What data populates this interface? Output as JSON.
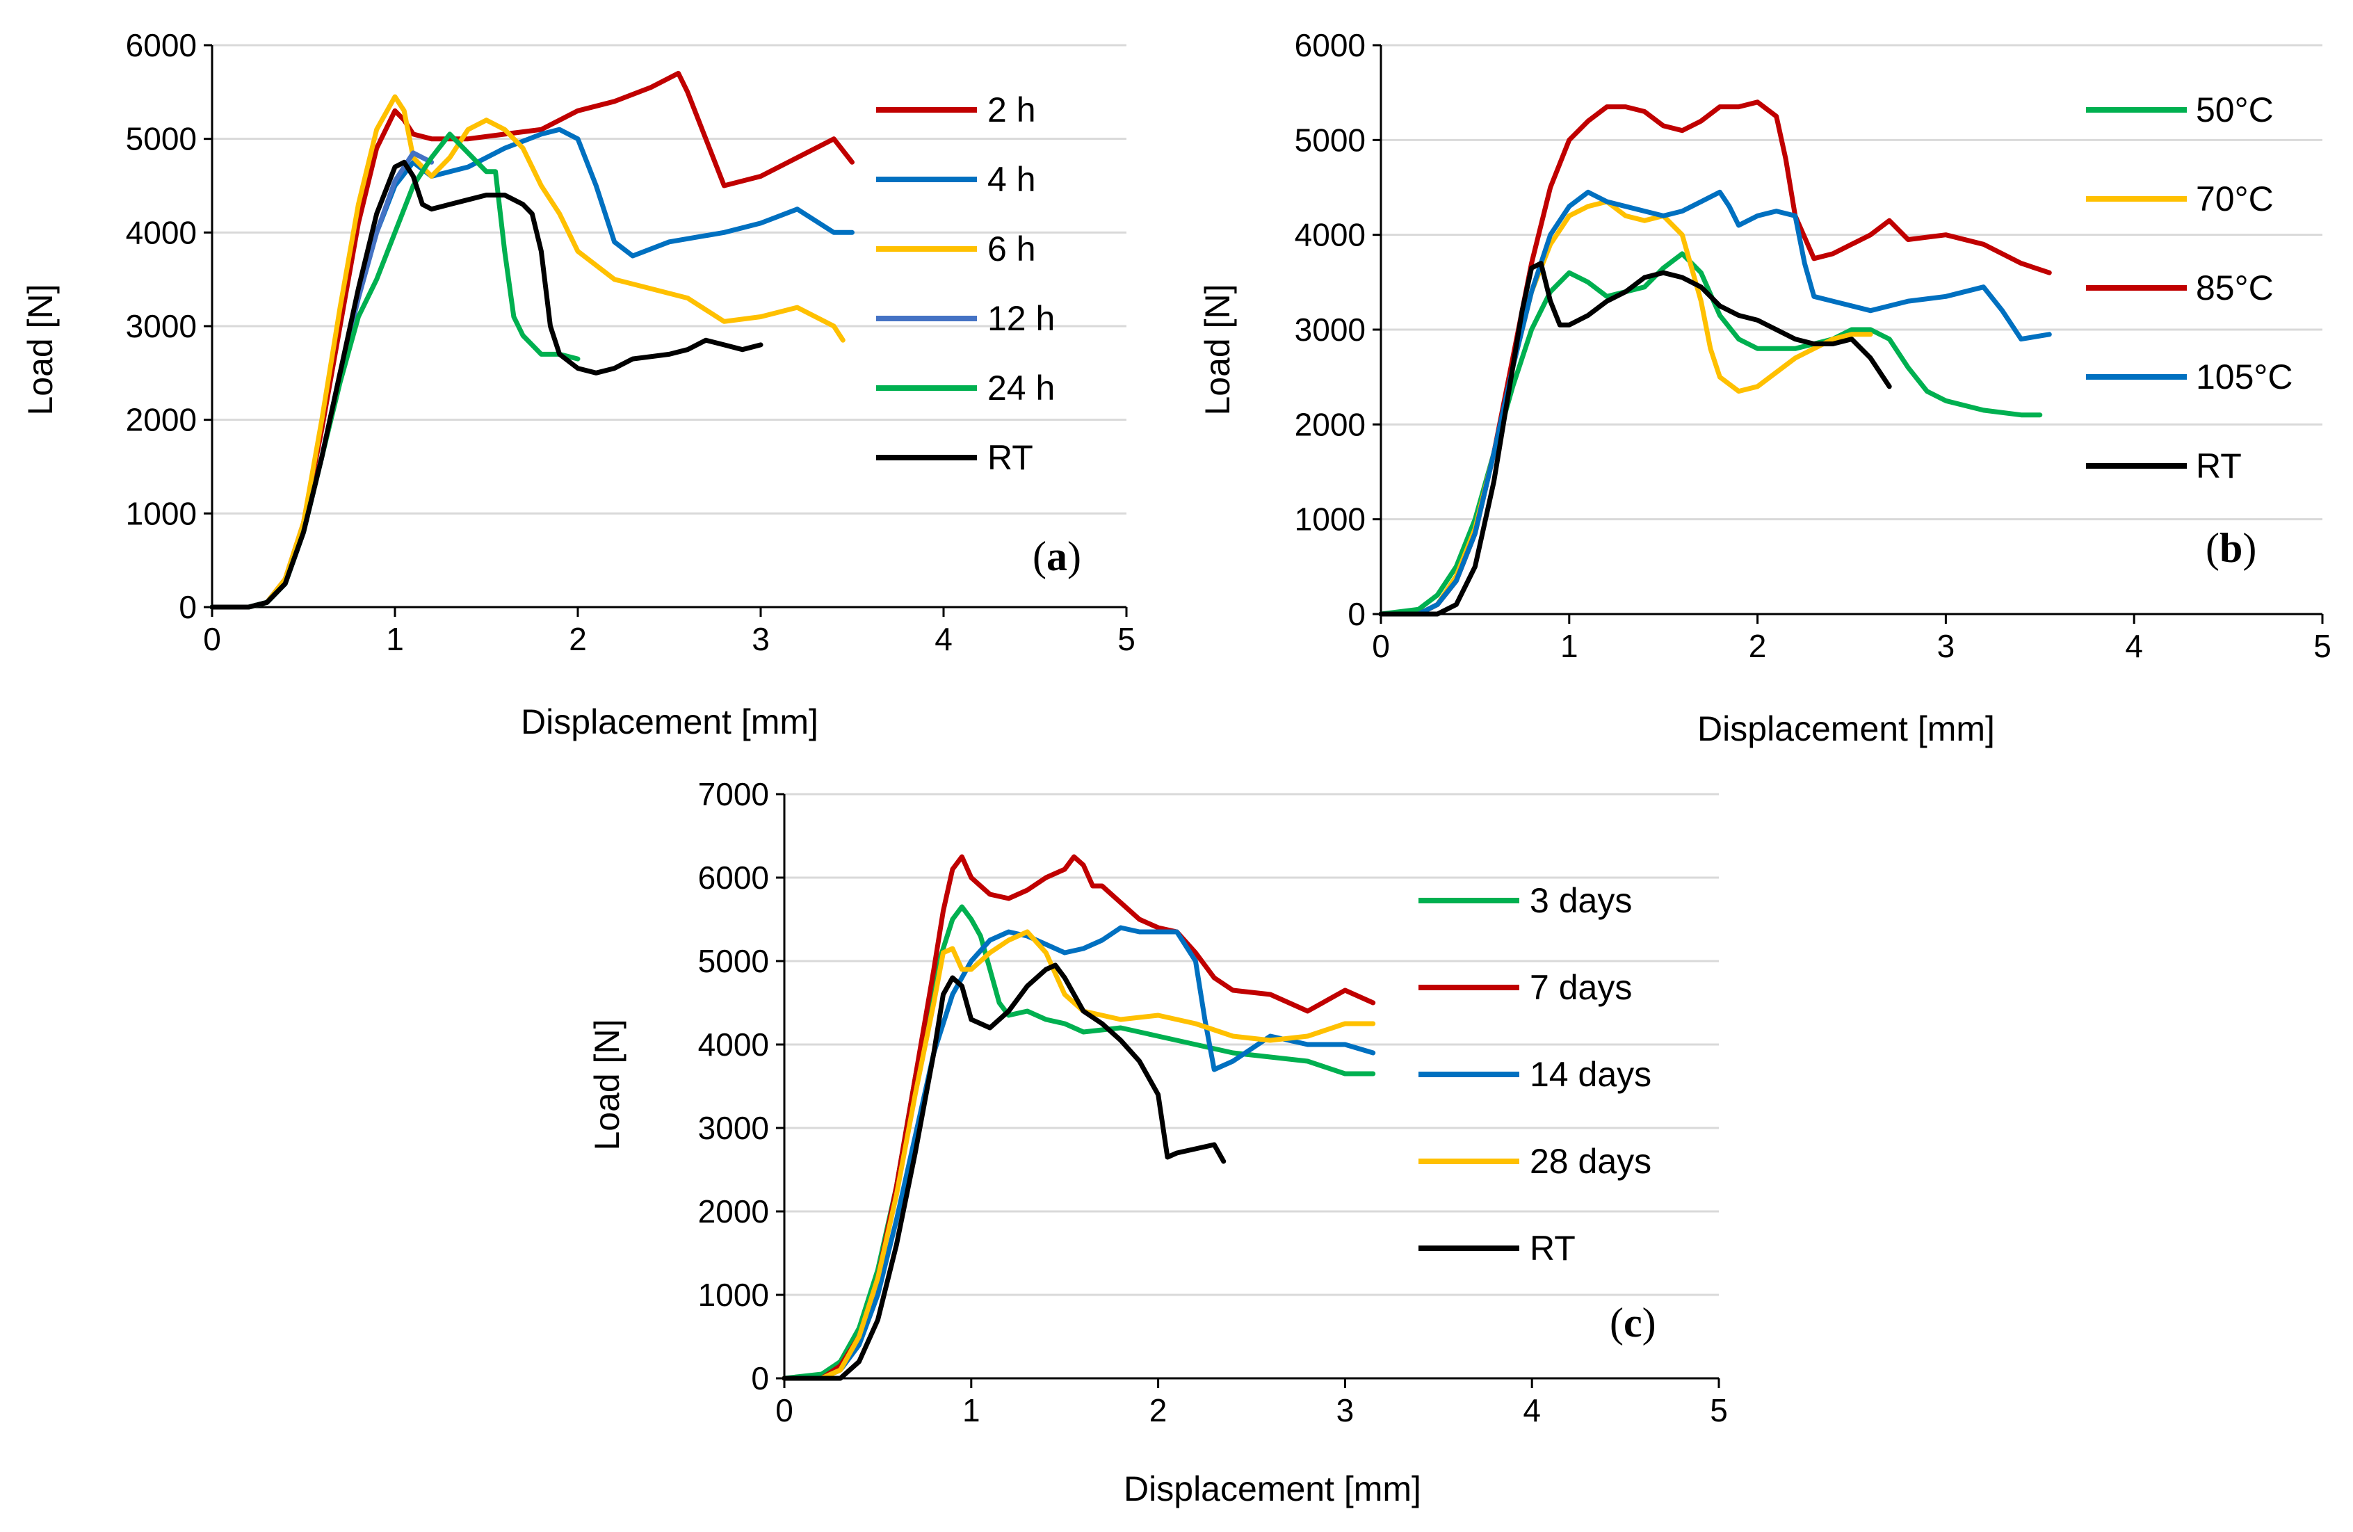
{
  "chart_data": [
    {
      "id": "a",
      "type": "line",
      "panel_label": "a",
      "xlabel": "Displacement [mm]",
      "ylabel": "Load [N]",
      "xlim": [
        0,
        5
      ],
      "ylim": [
        0,
        6000
      ],
      "xticks": [
        "0",
        "1",
        "2",
        "3",
        "4",
        "5"
      ],
      "yticks": [
        "0",
        "1000",
        "2000",
        "3000",
        "4000",
        "5000",
        "6000"
      ],
      "legend_position": "right",
      "series": [
        {
          "name": "2 h",
          "color": "#c00000",
          "x": [
            0,
            0.2,
            0.3,
            0.4,
            0.5,
            0.6,
            0.7,
            0.8,
            0.9,
            1.0,
            1.05,
            1.1,
            1.2,
            1.4,
            1.6,
            1.8,
            2.0,
            2.2,
            2.4,
            2.55,
            2.6,
            2.7,
            2.8,
            3.0,
            3.2,
            3.4,
            3.5
          ],
          "y": [
            0,
            0,
            50,
            300,
            900,
            1900,
            3000,
            4100,
            4900,
            5300,
            5200,
            5050,
            5000,
            5000,
            5050,
            5100,
            5300,
            5400,
            5550,
            5700,
            5500,
            5000,
            4500,
            4600,
            4800,
            5000,
            4750
          ]
        },
        {
          "name": "4 h",
          "color": "#0070c0",
          "x": [
            0,
            0.2,
            0.3,
            0.4,
            0.5,
            0.6,
            0.7,
            0.8,
            0.9,
            1.0,
            1.1,
            1.2,
            1.4,
            1.6,
            1.8,
            1.9,
            2.0,
            2.1,
            2.2,
            2.3,
            2.5,
            2.8,
            3.0,
            3.2,
            3.4,
            3.5
          ],
          "y": [
            0,
            0,
            50,
            250,
            800,
            1600,
            2500,
            3300,
            4000,
            4500,
            4750,
            4600,
            4700,
            4900,
            5050,
            5100,
            5000,
            4500,
            3900,
            3750,
            3900,
            4000,
            4100,
            4250,
            4000,
            4000
          ]
        },
        {
          "name": "6 h",
          "color": "#ffc000",
          "x": [
            0,
            0.2,
            0.3,
            0.4,
            0.5,
            0.6,
            0.7,
            0.8,
            0.9,
            1.0,
            1.05,
            1.1,
            1.2,
            1.3,
            1.4,
            1.5,
            1.6,
            1.7,
            1.8,
            1.9,
            2.0,
            2.2,
            2.4,
            2.6,
            2.8,
            3.0,
            3.2,
            3.4,
            3.45
          ],
          "y": [
            0,
            0,
            50,
            300,
            900,
            2000,
            3200,
            4300,
            5100,
            5450,
            5300,
            4800,
            4600,
            4800,
            5100,
            5200,
            5100,
            4900,
            4500,
            4200,
            3800,
            3500,
            3400,
            3300,
            3050,
            3100,
            3200,
            3000,
            2850
          ]
        },
        {
          "name": "12 h",
          "color": "#4472c4",
          "x": [
            0,
            0.2,
            0.3,
            0.4,
            0.5,
            0.6,
            0.7,
            0.8,
            0.9,
            1.0,
            1.1,
            1.15,
            1.2
          ],
          "y": [
            0,
            0,
            50,
            250,
            800,
            1600,
            2500,
            3300,
            4000,
            4550,
            4850,
            4800,
            4750
          ]
        },
        {
          "name": "24 h",
          "color": "#00b050",
          "x": [
            0,
            0.2,
            0.3,
            0.4,
            0.5,
            0.6,
            0.7,
            0.8,
            0.9,
            1.0,
            1.1,
            1.2,
            1.3,
            1.4,
            1.5,
            1.55,
            1.6,
            1.65,
            1.7,
            1.8,
            1.9,
            2.0
          ],
          "y": [
            0,
            0,
            50,
            250,
            800,
            1600,
            2400,
            3100,
            3500,
            4000,
            4500,
            4800,
            5050,
            4850,
            4650,
            4650,
            3800,
            3100,
            2900,
            2700,
            2700,
            2650
          ]
        },
        {
          "name": "RT",
          "color": "#000000",
          "x": [
            0,
            0.2,
            0.3,
            0.4,
            0.5,
            0.6,
            0.7,
            0.8,
            0.9,
            1.0,
            1.05,
            1.1,
            1.15,
            1.2,
            1.3,
            1.4,
            1.5,
            1.6,
            1.7,
            1.75,
            1.8,
            1.85,
            1.9,
            2.0,
            2.1,
            2.2,
            2.3,
            2.5,
            2.6,
            2.7,
            2.8,
            2.9,
            3.0
          ],
          "y": [
            0,
            0,
            50,
            250,
            800,
            1600,
            2500,
            3400,
            4200,
            4700,
            4750,
            4600,
            4300,
            4250,
            4300,
            4350,
            4400,
            4400,
            4300,
            4200,
            3800,
            3000,
            2700,
            2550,
            2500,
            2550,
            2650,
            2700,
            2750,
            2850,
            2800,
            2750,
            2800
          ]
        }
      ]
    },
    {
      "id": "b",
      "type": "line",
      "panel_label": "b",
      "xlabel": "Displacement [mm]",
      "ylabel": "Load [N]",
      "xlim": [
        0,
        5
      ],
      "ylim": [
        0,
        6000
      ],
      "xticks": [
        "0",
        "1",
        "2",
        "3",
        "4",
        "5"
      ],
      "yticks": [
        "0",
        "1000",
        "2000",
        "3000",
        "4000",
        "5000",
        "6000"
      ],
      "legend_position": "right",
      "series": [
        {
          "name": "50°C",
          "color": "#00b050",
          "x": [
            0,
            0.2,
            0.3,
            0.4,
            0.5,
            0.6,
            0.7,
            0.8,
            0.9,
            1.0,
            1.1,
            1.2,
            1.3,
            1.4,
            1.5,
            1.6,
            1.7,
            1.8,
            1.9,
            2.0,
            2.2,
            2.4,
            2.5,
            2.6,
            2.7,
            2.8,
            2.9,
            3.0,
            3.2,
            3.4,
            3.5
          ],
          "y": [
            0,
            50,
            200,
            500,
            1000,
            1700,
            2400,
            3000,
            3400,
            3600,
            3500,
            3350,
            3400,
            3450,
            3650,
            3800,
            3600,
            3150,
            2900,
            2800,
            2800,
            2900,
            3000,
            3000,
            2900,
            2600,
            2350,
            2250,
            2150,
            2100,
            2100
          ]
        },
        {
          "name": "70°C",
          "color": "#ffc000",
          "x": [
            0,
            0.2,
            0.3,
            0.4,
            0.5,
            0.6,
            0.7,
            0.8,
            0.9,
            1.0,
            1.1,
            1.2,
            1.3,
            1.4,
            1.5,
            1.6,
            1.7,
            1.75,
            1.8,
            1.9,
            2.0,
            2.2,
            2.4,
            2.5,
            2.6
          ],
          "y": [
            0,
            0,
            100,
            400,
            900,
            1700,
            2600,
            3400,
            3900,
            4200,
            4300,
            4350,
            4200,
            4150,
            4200,
            4000,
            3300,
            2800,
            2500,
            2350,
            2400,
            2700,
            2900,
            2950,
            2950
          ]
        },
        {
          "name": "85°C",
          "color": "#c00000",
          "x": [
            0,
            0.2,
            0.3,
            0.4,
            0.5,
            0.6,
            0.7,
            0.8,
            0.9,
            1.0,
            1.1,
            1.2,
            1.3,
            1.4,
            1.5,
            1.6,
            1.7,
            1.8,
            1.9,
            2.0,
            2.1,
            2.15,
            2.2,
            2.3,
            2.4,
            2.5,
            2.6,
            2.7,
            2.8,
            3.0,
            3.2,
            3.4,
            3.55
          ],
          "y": [
            0,
            0,
            100,
            350,
            850,
            1700,
            2700,
            3700,
            4500,
            5000,
            5200,
            5350,
            5350,
            5300,
            5150,
            5100,
            5200,
            5350,
            5350,
            5400,
            5250,
            4800,
            4200,
            3750,
            3800,
            3900,
            4000,
            4150,
            3950,
            4000,
            3900,
            3700,
            3600
          ]
        },
        {
          "name": "105°C",
          "color": "#0070c0",
          "x": [
            0,
            0.2,
            0.3,
            0.4,
            0.5,
            0.6,
            0.7,
            0.8,
            0.9,
            1.0,
            1.1,
            1.2,
            1.3,
            1.4,
            1.5,
            1.6,
            1.7,
            1.8,
            1.85,
            1.9,
            2.0,
            2.1,
            2.2,
            2.25,
            2.3,
            2.4,
            2.6,
            2.8,
            3.0,
            3.2,
            3.3,
            3.4,
            3.55
          ],
          "y": [
            0,
            0,
            100,
            350,
            850,
            1700,
            2600,
            3400,
            4000,
            4300,
            4450,
            4350,
            4300,
            4250,
            4200,
            4250,
            4350,
            4450,
            4300,
            4100,
            4200,
            4250,
            4200,
            3700,
            3350,
            3300,
            3200,
            3300,
            3350,
            3450,
            3200,
            2900,
            2950
          ]
        },
        {
          "name": "RT",
          "color": "#000000",
          "x": [
            0,
            0.2,
            0.3,
            0.4,
            0.5,
            0.6,
            0.7,
            0.75,
            0.8,
            0.85,
            0.9,
            0.95,
            1.0,
            1.1,
            1.2,
            1.3,
            1.4,
            1.5,
            1.6,
            1.7,
            1.8,
            1.9,
            2.0,
            2.1,
            2.2,
            2.3,
            2.4,
            2.5,
            2.6,
            2.7
          ],
          "y": [
            0,
            0,
            0,
            100,
            500,
            1400,
            2600,
            3200,
            3650,
            3700,
            3300,
            3050,
            3050,
            3150,
            3300,
            3400,
            3550,
            3600,
            3550,
            3450,
            3250,
            3150,
            3100,
            3000,
            2900,
            2850,
            2850,
            2900,
            2700,
            2400
          ]
        }
      ]
    },
    {
      "id": "c",
      "type": "line",
      "panel_label": "c",
      "xlabel": "Displacement [mm]",
      "ylabel": "Load [N]",
      "xlim": [
        0,
        5
      ],
      "ylim": [
        0,
        7000
      ],
      "xticks": [
        "0",
        "1",
        "2",
        "3",
        "4",
        "5"
      ],
      "yticks": [
        "0",
        "1000",
        "2000",
        "3000",
        "4000",
        "5000",
        "6000",
        "7000"
      ],
      "legend_position": "right",
      "series": [
        {
          "name": "3 days",
          "color": "#00b050",
          "x": [
            0,
            0.2,
            0.3,
            0.4,
            0.5,
            0.6,
            0.7,
            0.8,
            0.9,
            0.95,
            1.0,
            1.05,
            1.1,
            1.15,
            1.2,
            1.3,
            1.4,
            1.5,
            1.6,
            1.8,
            2.0,
            2.2,
            2.4,
            2.6,
            2.8,
            3.0,
            3.15
          ],
          "y": [
            0,
            50,
            200,
            600,
            1300,
            2300,
            3600,
            4800,
            5500,
            5650,
            5500,
            5300,
            4900,
            4500,
            4350,
            4400,
            4300,
            4250,
            4150,
            4200,
            4100,
            4000,
            3900,
            3850,
            3800,
            3650,
            3650
          ]
        },
        {
          "name": "7 days",
          "color": "#c00000",
          "x": [
            0,
            0.2,
            0.3,
            0.4,
            0.5,
            0.6,
            0.7,
            0.8,
            0.85,
            0.9,
            0.95,
            1.0,
            1.05,
            1.1,
            1.2,
            1.3,
            1.4,
            1.5,
            1.55,
            1.6,
            1.65,
            1.7,
            1.8,
            1.9,
            2.0,
            2.1,
            2.2,
            2.3,
            2.4,
            2.6,
            2.8,
            3.0,
            3.15
          ],
          "y": [
            0,
            0,
            150,
            500,
            1200,
            2300,
            3600,
            4900,
            5600,
            6100,
            6250,
            6000,
            5900,
            5800,
            5750,
            5850,
            6000,
            6100,
            6250,
            6150,
            5900,
            5900,
            5700,
            5500,
            5400,
            5350,
            5100,
            4800,
            4650,
            4600,
            4400,
            4650,
            4500
          ]
        },
        {
          "name": "14 days",
          "color": "#0070c0",
          "x": [
            0,
            0.2,
            0.3,
            0.4,
            0.5,
            0.6,
            0.7,
            0.8,
            0.9,
            1.0,
            1.1,
            1.2,
            1.3,
            1.4,
            1.5,
            1.6,
            1.7,
            1.8,
            1.9,
            2.0,
            2.1,
            2.2,
            2.25,
            2.3,
            2.4,
            2.6,
            2.8,
            3.0,
            3.15
          ],
          "y": [
            0,
            0,
            100,
            400,
            1000,
            1900,
            2900,
            3900,
            4600,
            5000,
            5250,
            5350,
            5300,
            5200,
            5100,
            5150,
            5250,
            5400,
            5350,
            5350,
            5350,
            5000,
            4300,
            3700,
            3800,
            4100,
            4000,
            4000,
            3900
          ]
        },
        {
          "name": "28 days",
          "color": "#ffc000",
          "x": [
            0,
            0.2,
            0.3,
            0.4,
            0.5,
            0.6,
            0.7,
            0.8,
            0.85,
            0.9,
            0.95,
            1.0,
            1.1,
            1.2,
            1.3,
            1.4,
            1.5,
            1.6,
            1.8,
            2.0,
            2.2,
            2.4,
            2.6,
            2.8,
            3.0,
            3.15
          ],
          "y": [
            0,
            0,
            100,
            500,
            1200,
            2200,
            3400,
            4500,
            5100,
            5150,
            4900,
            4900,
            5100,
            5250,
            5350,
            5100,
            4600,
            4400,
            4300,
            4350,
            4250,
            4100,
            4050,
            4100,
            4250,
            4250
          ]
        },
        {
          "name": "RT",
          "color": "#000000",
          "x": [
            0,
            0.2,
            0.3,
            0.4,
            0.5,
            0.6,
            0.7,
            0.8,
            0.85,
            0.9,
            0.95,
            1.0,
            1.1,
            1.2,
            1.3,
            1.4,
            1.45,
            1.5,
            1.6,
            1.7,
            1.8,
            1.9,
            2.0,
            2.05,
            2.1,
            2.2,
            2.3,
            2.35
          ],
          "y": [
            0,
            0,
            0,
            200,
            700,
            1600,
            2700,
            3900,
            4600,
            4800,
            4700,
            4300,
            4200,
            4400,
            4700,
            4900,
            4950,
            4800,
            4400,
            4250,
            4050,
            3800,
            3400,
            2650,
            2700,
            2750,
            2800,
            2600
          ]
        }
      ]
    }
  ]
}
